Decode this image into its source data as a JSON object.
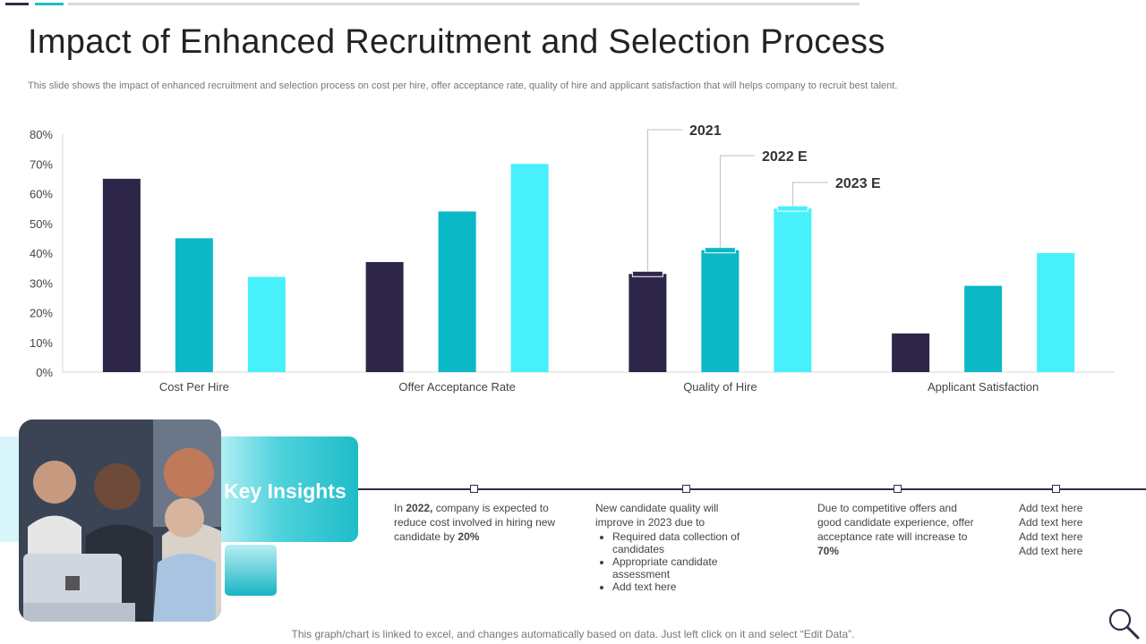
{
  "title": "Impact of Enhanced Recruitment and Selection Process",
  "subtitle": "This slide shows the impact of enhanced recruitment and selection process on cost per hire, offer acceptance rate, quality of hire and applicant satisfaction that will helps company to recruit best talent.",
  "colors": {
    "series_2021": "#2e2649",
    "series_2022": "#0bb8c6",
    "series_2023": "#48f0fb",
    "accent": "#1fbcc9",
    "dark": "#2e2e48"
  },
  "chart_data": {
    "type": "bar",
    "categories": [
      "Cost Per Hire",
      "Offer Acceptance Rate",
      "Quality of Hire",
      "Applicant Satisfaction"
    ],
    "series": [
      {
        "name": "2021",
        "values": [
          65,
          37,
          33,
          13
        ]
      },
      {
        "name": "2022 E",
        "values": [
          45,
          54,
          41,
          29
        ]
      },
      {
        "name": "2023 E",
        "values": [
          32,
          70,
          55,
          40
        ]
      }
    ],
    "y_ticks": [
      "0%",
      "10%",
      "20%",
      "30%",
      "40%",
      "50%",
      "60%",
      "70%",
      "80%"
    ],
    "ylim": [
      0,
      80
    ],
    "unit": "%",
    "legend_placement": "callouts above Quality of Hire bars"
  },
  "key_insights": {
    "label": "Key Insights",
    "image_icon": "team-photo",
    "items": [
      {
        "lines": [
          "In ",
          "2022,",
          " company is expected to reduce cost involved in hiring new candidate by ",
          "20%"
        ]
      },
      {
        "intro": "New candidate quality will improve in 2023 due to",
        "bullets": [
          "Required data collection of candidates",
          "Appropriate candidate assessment",
          "Add text here"
        ]
      },
      {
        "lines": [
          "Due to competitive offers and good candidate experience, offer acceptance rate will increase to ",
          "70%"
        ]
      },
      {
        "lines": [
          "Add text here",
          "Add text here",
          "Add text here",
          "Add text here"
        ]
      }
    ]
  },
  "footer": "This graph/chart is linked to excel, and changes automatically based on data. Just left click on it and select “Edit Data”.",
  "zoom_icon": "magnifier-icon"
}
